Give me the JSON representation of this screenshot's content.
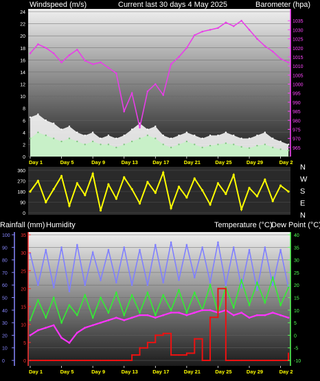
{
  "header": {
    "left": "Windspeed (m/s)",
    "center": "Current last 30 days 4 May 2025",
    "right": "Barometer (hpa)"
  },
  "compass": [
    "N",
    "W",
    "S",
    "E",
    "N"
  ],
  "lower_header": {
    "rain": "Rainfall (mm)",
    "humidity": "Humidity",
    "temp": "Temperature (°C)",
    "dew": "Dew Point (°C)"
  },
  "x_labels": [
    "Day 1",
    "Day 5",
    "Day 9",
    "Day 13",
    "Day 17",
    "Day 21",
    "Day 25",
    "Day 29",
    "Day 2"
  ],
  "colors": {
    "barometer": "#e83ee8",
    "wind": "#c8f0c8",
    "gust": "#ffffff",
    "direction": "#ffff00",
    "humidity": "#7f7fff",
    "temperature": "#33ee33",
    "dewpoint": "#ff33ff",
    "rain": "#ee1111",
    "baro_axis": "#ff44ff",
    "temp_axis": "#55ff55",
    "rain_axis": "#ff3333",
    "hum_axis": "#8888ff"
  },
  "chart_data": [
    {
      "type": "line",
      "title": "Current last 30 days 4 May 2025",
      "x": [
        1,
        2,
        3,
        4,
        5,
        6,
        7,
        8,
        9,
        10,
        11,
        12,
        13,
        14,
        15,
        16,
        17,
        18,
        19,
        20,
        21,
        22,
        23,
        24,
        25,
        26,
        27,
        28,
        29,
        30,
        31,
        32,
        33,
        34
      ],
      "xlabel": "",
      "left_axis": {
        "label": "Windspeed (m/s)",
        "range": [
          0,
          24
        ],
        "ticks": [
          0,
          2,
          4,
          6,
          8,
          10,
          12,
          14,
          16,
          18,
          20,
          22,
          24
        ]
      },
      "right_axis": {
        "label": "Barometer (hpa)",
        "range": [
          960,
          1040
        ],
        "ticks": [
          965,
          970,
          975,
          980,
          985,
          990,
          995,
          1000,
          1005,
          1010,
          1015,
          1020,
          1025,
          1030,
          1035
        ]
      },
      "series": [
        {
          "name": "Barometer (hpa)",
          "axis": "right",
          "values": [
            1017,
            1022,
            1020,
            1017,
            1012,
            1016,
            1019,
            1013,
            1011,
            1012,
            1009,
            1006,
            985,
            995,
            976,
            996,
            1000,
            994,
            1011,
            1015,
            1020,
            1027,
            1029,
            1030,
            1031,
            1034,
            1032,
            1035,
            1030,
            1025,
            1021,
            1018,
            1014,
            1012
          ]
        },
        {
          "name": "Windspeed (m/s)",
          "axis": "left",
          "values": [
            3,
            4,
            3.5,
            3,
            2.5,
            3,
            2.5,
            2,
            2.5,
            2,
            2,
            1.5,
            2,
            2.5,
            3,
            3.5,
            3,
            2,
            1.5,
            2,
            2.5,
            2,
            1.5,
            1.8,
            2,
            2.2,
            2,
            1.6,
            1.4,
            1.8,
            2,
            1.5,
            1.2,
            1
          ]
        },
        {
          "name": "Gust (m/s)",
          "axis": "left",
          "values": [
            6.5,
            7,
            6,
            5.5,
            4.5,
            5,
            4,
            3.5,
            4,
            3,
            3.5,
            3,
            3.5,
            4.5,
            5.5,
            4.5,
            5,
            3.5,
            3,
            3.5,
            4,
            3.5,
            3,
            3.5,
            3.5,
            4,
            3.5,
            3,
            3,
            3.5,
            4,
            3,
            2.5,
            2
          ]
        }
      ]
    },
    {
      "type": "scatter",
      "x": [
        1,
        2,
        3,
        4,
        5,
        6,
        7,
        8,
        9,
        10,
        11,
        12,
        13,
        14,
        15,
        16,
        17,
        18,
        19,
        20,
        21,
        22,
        23,
        24,
        25,
        26,
        27,
        28,
        29,
        30,
        31,
        32,
        33,
        34
      ],
      "y_axis": {
        "range": [
          0,
          360
        ],
        "ticks": [
          0,
          90,
          180,
          270,
          360
        ]
      },
      "series": [
        {
          "name": "Wind direction (°)",
          "values": [
            180,
            270,
            90,
            200,
            310,
            60,
            250,
            150,
            330,
            20,
            240,
            120,
            300,
            200,
            80,
            260,
            170,
            340,
            40,
            220,
            130,
            290,
            190,
            70,
            250,
            160,
            320,
            30,
            210,
            140,
            280,
            100,
            230,
            180
          ]
        }
      ]
    },
    {
      "type": "line",
      "x": [
        1,
        2,
        3,
        4,
        5,
        6,
        7,
        8,
        9,
        10,
        11,
        12,
        13,
        14,
        15,
        16,
        17,
        18,
        19,
        20,
        21,
        22,
        23,
        24,
        25,
        26,
        27,
        28,
        29,
        30,
        31,
        32,
        33,
        34
      ],
      "rain_axis": {
        "label": "Rainfall (mm)",
        "range": [
          0,
          35
        ],
        "ticks": [
          0,
          5,
          10,
          15,
          20,
          25,
          30,
          35
        ]
      },
      "humidity_axis": {
        "label": "Humidity",
        "range": [
          0,
          100
        ],
        "ticks": [
          0,
          10,
          20,
          30,
          40,
          50,
          60,
          70,
          80,
          90,
          100
        ]
      },
      "temp_axis": {
        "label": "Temperature (°C)",
        "range": [
          -10,
          40
        ],
        "ticks": [
          -10,
          -5,
          0,
          5,
          10,
          15,
          20,
          25,
          30,
          35,
          40
        ]
      },
      "series": [
        {
          "name": "Humidity",
          "axis": "humidity",
          "values": [
            85,
            60,
            88,
            58,
            90,
            55,
            92,
            60,
            86,
            64,
            88,
            62,
            90,
            60,
            88,
            60,
            92,
            62,
            94,
            64,
            92,
            66,
            90,
            62,
            94,
            60,
            90,
            58,
            88,
            56,
            90,
            60,
            88,
            58
          ]
        },
        {
          "name": "Temperature (°C)",
          "axis": "temp",
          "values": [
            6,
            14,
            7,
            15,
            5,
            12,
            8,
            16,
            7,
            15,
            9,
            17,
            8,
            16,
            9,
            17,
            8,
            16,
            10,
            18,
            9,
            17,
            10,
            20,
            9,
            19,
            11,
            22,
            12,
            21,
            13,
            23,
            12,
            19
          ]
        },
        {
          "name": "Dew Point (°C)",
          "axis": "temp",
          "values": [
            0,
            2,
            3,
            4,
            -1,
            -3,
            1,
            3,
            4,
            5,
            6,
            7,
            6,
            7,
            8,
            8,
            7,
            8,
            9,
            9,
            8,
            9,
            10,
            10,
            9,
            10,
            8,
            9,
            7,
            8,
            8,
            9,
            8,
            7
          ]
        },
        {
          "name": "Rainfall (mm)",
          "axis": "rain",
          "values": [
            0,
            0,
            0,
            0,
            0,
            0,
            0,
            0,
            0,
            0,
            0,
            0,
            0,
            1.5,
            3.5,
            5,
            7,
            7.5,
            1.5,
            1.5,
            2,
            6,
            0,
            12,
            20,
            0,
            0,
            0,
            0,
            0,
            0,
            0,
            0,
            2
          ]
        }
      ]
    }
  ]
}
